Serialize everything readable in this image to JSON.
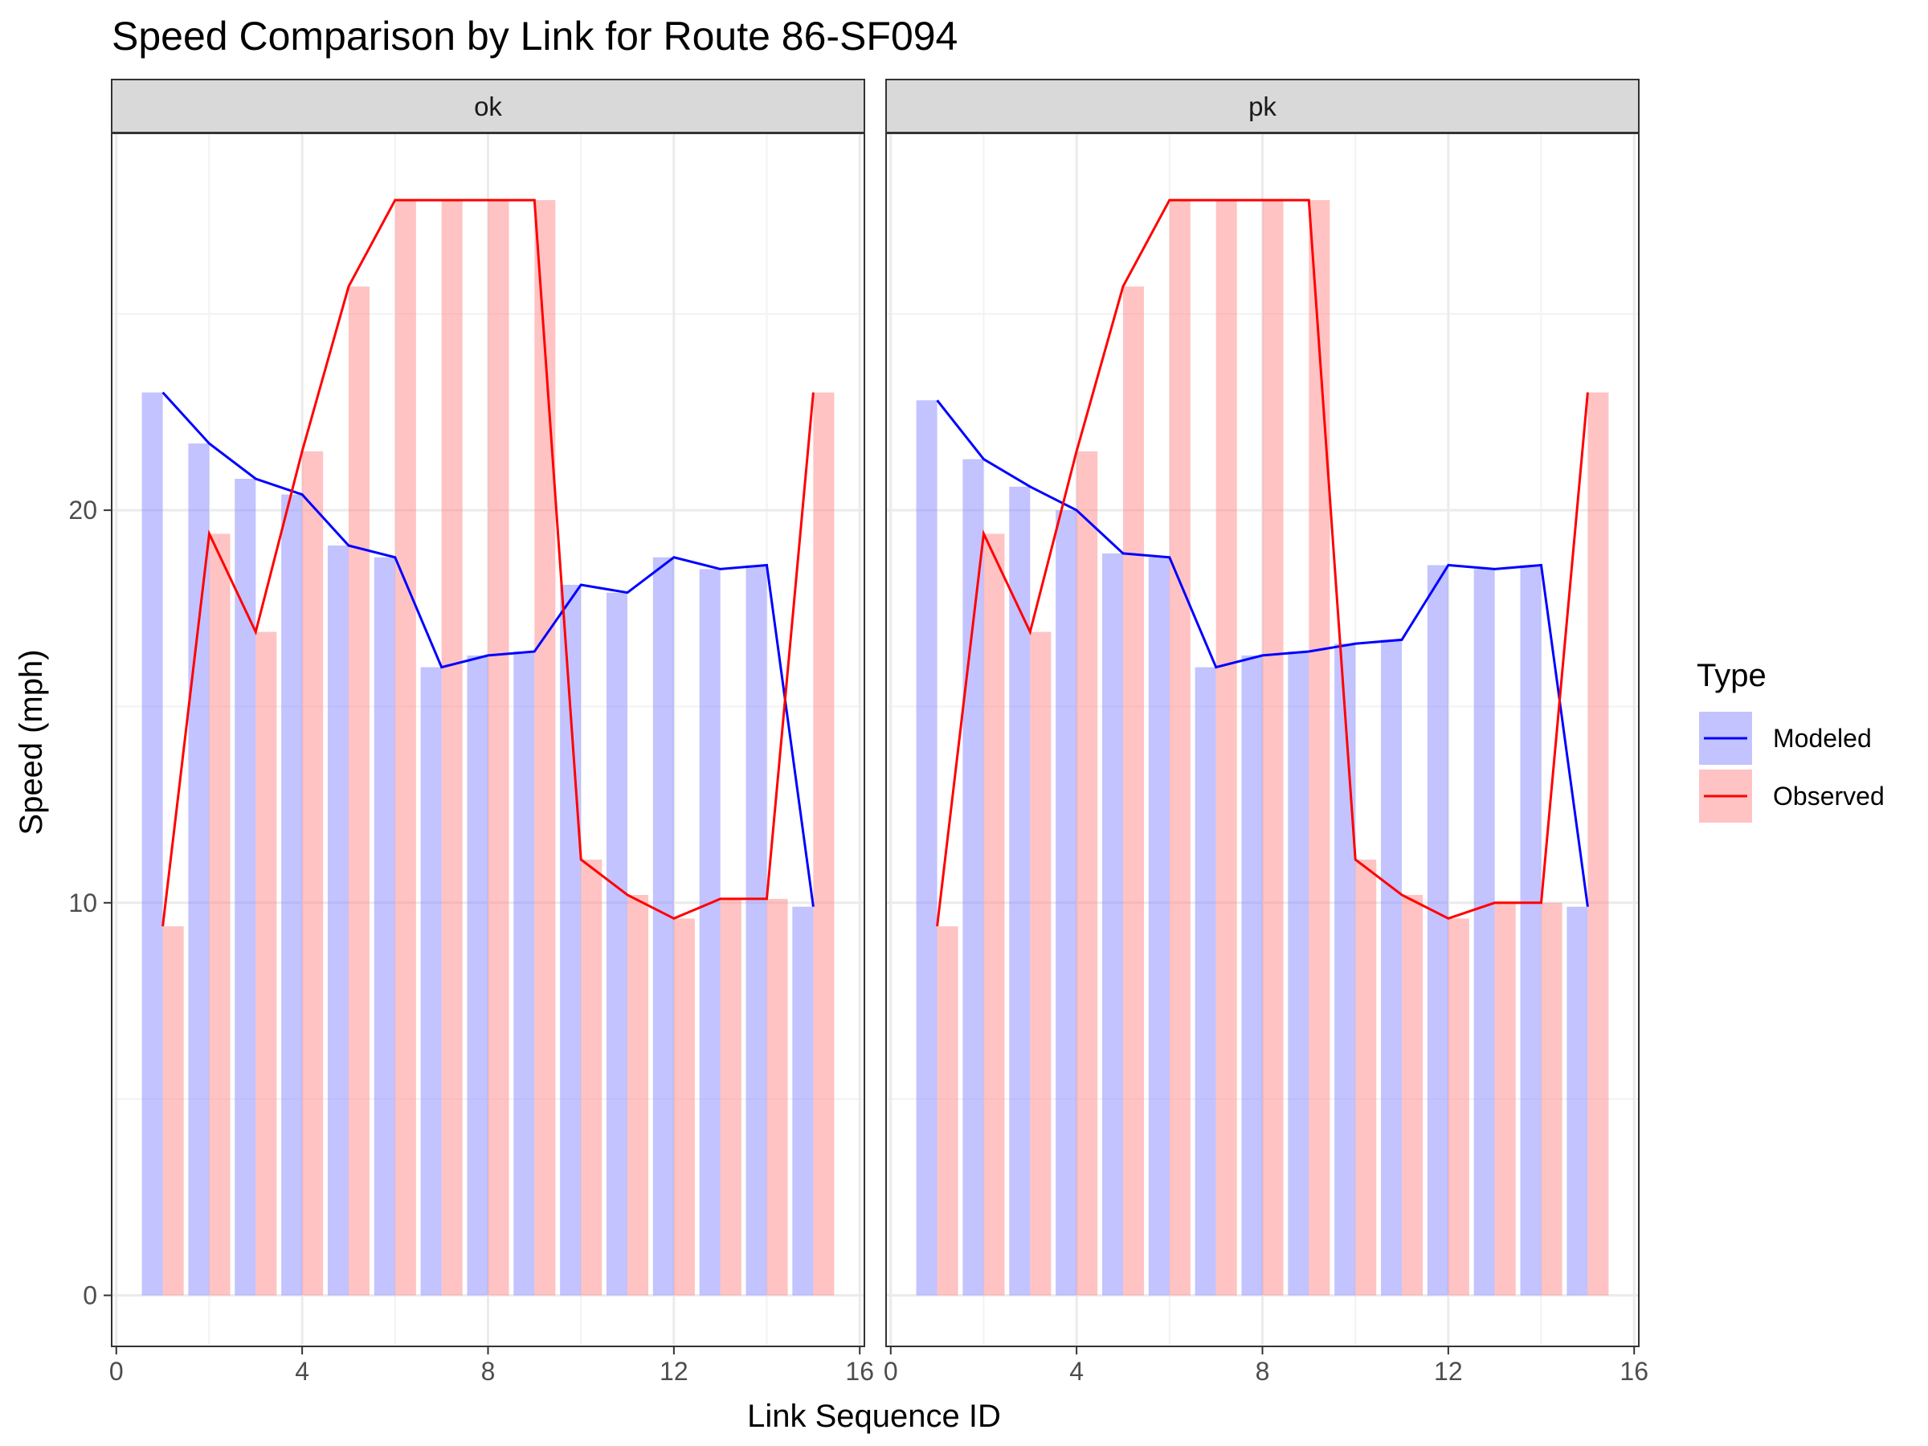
{
  "chart_data": {
    "type": "bar",
    "title": "Speed Comparison by Link for Route 86-SF094",
    "xlabel": "Link Sequence ID",
    "ylabel": "Speed (mph)",
    "xlim": [
      -0.1,
      16.1
    ],
    "ylim": [
      -1.3,
      29.6
    ],
    "xticks": [
      0,
      4,
      8,
      12,
      16
    ],
    "yticks": [
      0,
      10,
      20
    ],
    "grid": true,
    "legend": {
      "title": "Type",
      "position": "right",
      "entries": [
        {
          "label": "Modeled",
          "fill": "#8888ff",
          "line": "#0000ff"
        },
        {
          "label": "Observed",
          "fill": "#ff8888",
          "line": "#ff0000"
        }
      ]
    },
    "panels": [
      {
        "label": "ok",
        "x": [
          1,
          2,
          3,
          4,
          5,
          6,
          7,
          8,
          9,
          10,
          11,
          12,
          13,
          14,
          15
        ],
        "series": [
          {
            "name": "Modeled",
            "values": [
              23.0,
              21.7,
              20.8,
              20.4,
              19.1,
              18.8,
              16.0,
              16.3,
              16.4,
              18.1,
              17.9,
              18.8,
              18.5,
              18.6,
              9.9
            ]
          },
          {
            "name": "Observed",
            "values": [
              9.4,
              19.4,
              16.9,
              21.5,
              25.7,
              27.9,
              27.9,
              27.9,
              27.9,
              11.1,
              10.2,
              9.6,
              10.1,
              10.1,
              23.0
            ]
          }
        ]
      },
      {
        "label": "pk",
        "x": [
          1,
          2,
          3,
          4,
          5,
          6,
          7,
          8,
          9,
          10,
          11,
          12,
          13,
          14,
          15
        ],
        "series": [
          {
            "name": "Modeled",
            "values": [
              22.8,
              21.3,
              20.6,
              20.0,
              18.9,
              18.8,
              16.0,
              16.3,
              16.4,
              16.6,
              16.7,
              18.6,
              18.5,
              18.6,
              9.9
            ]
          },
          {
            "name": "Observed",
            "values": [
              9.4,
              19.4,
              16.9,
              21.5,
              25.7,
              27.9,
              27.9,
              27.9,
              27.9,
              11.1,
              10.2,
              9.6,
              10.0,
              10.0,
              23.0
            ]
          }
        ]
      }
    ]
  }
}
